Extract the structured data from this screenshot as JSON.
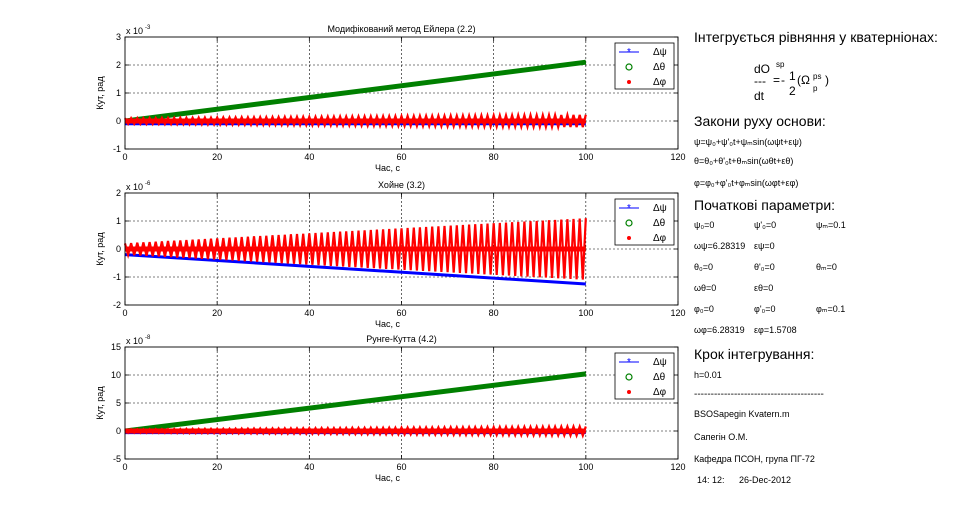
{
  "chart_data": [
    {
      "type": "line",
      "title": "Модифікований метод Ейлера (2.2)",
      "xlabel": "Час, с",
      "ylabel": "Кут, рад",
      "exponent": "x 10^-3",
      "exponent_base": "x 10",
      "exponent_power": "-3",
      "xlim": [
        0,
        120
      ],
      "ylim": [
        -1,
        3
      ],
      "xticks": [
        "0",
        "20",
        "40",
        "60",
        "80",
        "100",
        "120"
      ],
      "yticks": [
        "-1",
        "0",
        "1",
        "2",
        "3"
      ],
      "grid": true,
      "legend_position": "top-right",
      "series": [
        {
          "name": "Δψ",
          "color": "#0000ff",
          "marker": "star",
          "x": [
            0,
            100
          ],
          "y": [
            -0.1,
            -0.1
          ]
        },
        {
          "name": "Δθ",
          "color": "#008000",
          "marker": "circle",
          "x": [
            0,
            100
          ],
          "y": [
            0.0,
            2.1
          ]
        },
        {
          "name": "Δφ",
          "color": "#ff0000",
          "marker": "dot",
          "x": [
            0,
            100
          ],
          "y": [
            0.0,
            0.0
          ],
          "band": [
            [
              0,
              0.1
            ],
            [
              100,
              0.22
            ]
          ]
        }
      ]
    },
    {
      "type": "line",
      "title": "Хойне (3.2)",
      "xlabel": "Час, с",
      "ylabel": "Кут, рад",
      "exponent": "x 10^-6",
      "exponent_base": "x 10",
      "exponent_power": "-6",
      "xlim": [
        0,
        120
      ],
      "ylim": [
        -2,
        2
      ],
      "xticks": [
        "0",
        "20",
        "40",
        "60",
        "80",
        "100",
        "120"
      ],
      "yticks": [
        "-2",
        "-1",
        "0",
        "1",
        "2"
      ],
      "grid": true,
      "legend_position": "top-right",
      "series": [
        {
          "name": "Δψ",
          "color": "#0000ff",
          "marker": "star",
          "x": [
            0,
            100
          ],
          "y": [
            -0.2,
            -1.25
          ]
        },
        {
          "name": "Δθ",
          "color": "#008000",
          "marker": "circle",
          "x": [
            0,
            100
          ],
          "y": [
            0.0,
            0.0
          ]
        },
        {
          "name": "Δφ",
          "color": "#ff0000",
          "marker": "dot",
          "x": [
            0,
            100
          ],
          "y": [
            0.0,
            0.0
          ],
          "band": [
            [
              0,
              0.2
            ],
            [
              100,
              1.1
            ]
          ]
        }
      ]
    },
    {
      "type": "line",
      "title": "Рунге-Кутта (4.2)",
      "xlabel": "Час, с",
      "ylabel": "Кут, рад",
      "exponent": "x 10^-8",
      "exponent_base": "x 10",
      "exponent_power": "-8",
      "xlim": [
        0,
        120
      ],
      "ylim": [
        -5,
        15
      ],
      "xticks": [
        "0",
        "20",
        "40",
        "60",
        "80",
        "100",
        "120"
      ],
      "yticks": [
        "-5",
        "0",
        "5",
        "10",
        "15"
      ],
      "grid": true,
      "legend_position": "top-right",
      "series": [
        {
          "name": "Δψ",
          "color": "#0000ff",
          "marker": "star",
          "x": [
            0,
            100
          ],
          "y": [
            -0.3,
            -0.3
          ]
        },
        {
          "name": "Δθ",
          "color": "#008000",
          "marker": "circle",
          "x": [
            0,
            100
          ],
          "y": [
            0.0,
            10.2
          ]
        },
        {
          "name": "Δφ",
          "color": "#ff0000",
          "marker": "dot",
          "x": [
            0,
            100
          ],
          "y": [
            0.0,
            0.0
          ],
          "band": [
            [
              0,
              0.3
            ],
            [
              100,
              0.8
            ]
          ]
        }
      ]
    }
  ],
  "panel": {
    "h1": "Інтегрується рівняння у кватерніонах:",
    "eq": {
      "dO": "dO",
      "sp": "sp",
      "dashes": "---",
      "eq": "=",
      "half_num": "1",
      "half_den": "2",
      "minus": "-",
      "omega": "(Ω",
      "ps": "ps",
      "p": "p",
      "close": ")",
      "dt": "dt"
    },
    "h2": "Закони руху основи:",
    "laws": [
      "ψ=ψ₀+ψ'₀t+ψₘsin(ωψt+εψ)",
      "θ=θ₀+θ'₀t+θₘsin(ωθt+εθ)",
      "φ=φ₀+φ'₀t+φₘsin(ωφt+εφ)"
    ],
    "h3": "Початкові параметри:",
    "params": [
      [
        "ψ₀=0",
        "ψ'₀=0",
        "ψₘ=0.1"
      ],
      [
        "ωψ=6.28319",
        "εψ=0"
      ],
      [
        "θ₀=0",
        "θ'₀=0",
        "θₘ=0"
      ],
      [
        "ωθ=0",
        "εθ=0"
      ],
      [
        "φ₀=0",
        "φ'₀=0",
        "φₘ=0.1"
      ],
      [
        "ωφ=6.28319",
        "εφ=1.5708"
      ]
    ],
    "h4": "Крок інтегрування:",
    "step": "h=0.01",
    "separator": "---------------------------------------",
    "file": "BSOSapegin Kvatern.m",
    "author": "Сапегін О.М.",
    "dept": "Кафедра ПСОН, група ПГ-72",
    "time": "14: 12:",
    "date": "26-Dec-2012"
  }
}
